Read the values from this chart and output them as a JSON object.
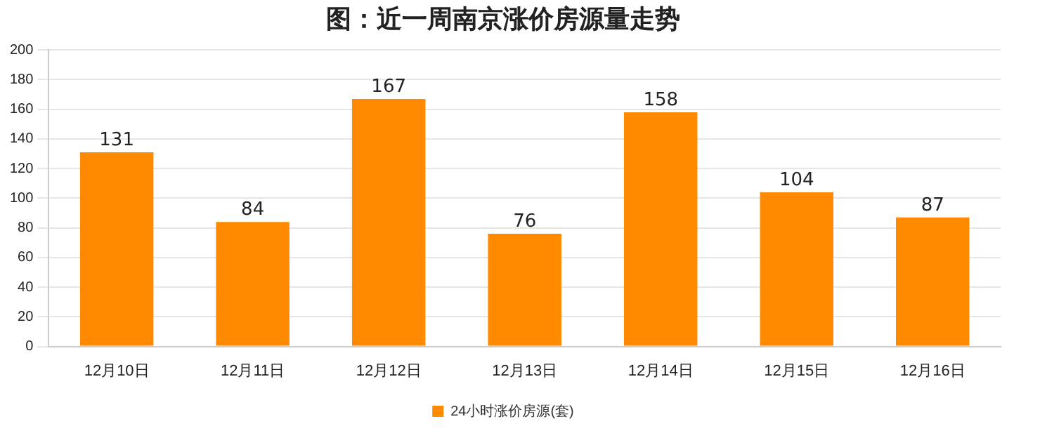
{
  "chart_data": {
    "type": "bar",
    "title": "图：近一周南京涨价房源量走势",
    "categories": [
      "12月10日",
      "12月11日",
      "12月12日",
      "12月13日",
      "12月14日",
      "12月15日",
      "12月16日"
    ],
    "series": [
      {
        "name": "24小时涨价房源(套)",
        "color": "#ff8a00",
        "values": [
          131,
          84,
          167,
          76,
          158,
          104,
          87
        ]
      }
    ],
    "ylim": [
      0,
      200
    ],
    "yticks": [
      0,
      20,
      40,
      60,
      80,
      100,
      120,
      140,
      160,
      180,
      200
    ],
    "grid": "y",
    "legend": "bottom",
    "data_labels": true
  }
}
